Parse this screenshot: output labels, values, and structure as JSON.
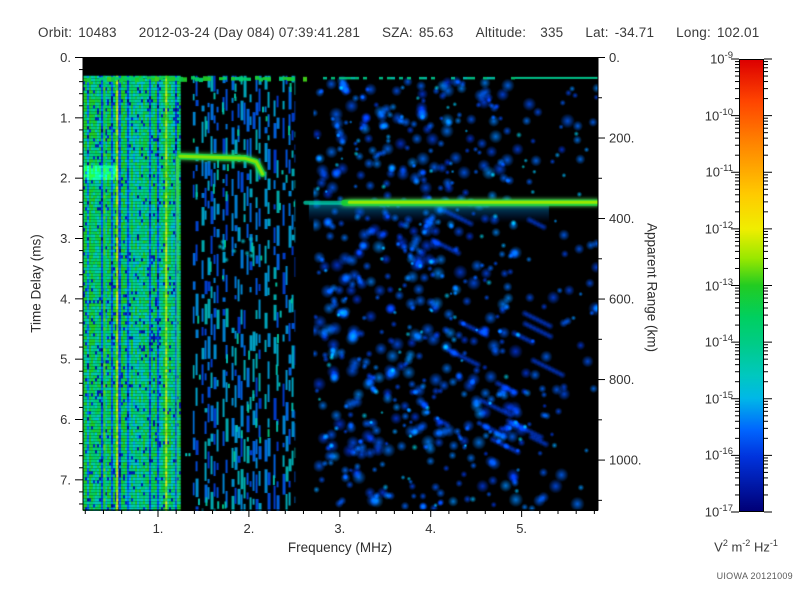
{
  "header": {
    "items": [
      {
        "label": "Orbit:",
        "value": "10483"
      },
      {
        "label": "",
        "value": "2012-03-24 (Day 084) 07:39:41.281"
      },
      {
        "label": "SZA:",
        "value": "85.63"
      },
      {
        "label": "Altitude:",
        "value": "335"
      },
      {
        "label": "Lat:",
        "value": "-34.71"
      },
      {
        "label": "Long:",
        "value": "102.01"
      }
    ]
  },
  "credit": "UIOWA 20121009",
  "chart_data": {
    "type": "heatmap",
    "description": "MARSIS-style AIS radar ionogram spectrogram: received spectral density vs frequency and time delay",
    "xlabel": "Frequency (MHz)",
    "ylabel_left": "Time Delay (ms)",
    "ylabel_right": "Apparent Range (km)",
    "x_range": [
      0.175,
      5.84
    ],
    "x_major_ticks": [
      1,
      2,
      3,
      4,
      5
    ],
    "x_major_labels": [
      "1.",
      "2.",
      "3.",
      "4.",
      "5."
    ],
    "x_minor_step": 0.2,
    "y_range_ms": [
      0,
      7.5
    ],
    "y_major_ticks_ms": [
      0,
      1,
      2,
      3,
      4,
      5,
      6,
      7
    ],
    "y_major_labels": [
      "0.",
      "1.",
      "2.",
      "3.",
      "4.",
      "5.",
      "6.",
      "7."
    ],
    "y_minor_step_ms": 0.2,
    "right_range_km": [
      0,
      1124
    ],
    "right_major_ticks_km": [
      0,
      200,
      400,
      600,
      800,
      1000
    ],
    "right_major_labels": [
      "0.",
      "200.",
      "400.",
      "600.",
      "800.",
      "1000."
    ],
    "right_minor_step_km": 100,
    "grid": false,
    "colorbar": {
      "scale": "log",
      "exponents": [
        -9,
        -10,
        -11,
        -12,
        -13,
        -14,
        -15,
        -16,
        -17
      ],
      "units_parts": [
        {
          "base": "V",
          "sup": "2"
        },
        {
          "base": "m",
          "sup": "-2"
        },
        {
          "base": "Hz",
          "sup": "-1"
        }
      ],
      "stops": [
        [
          0.0,
          "#dd0000"
        ],
        [
          0.09,
          "#ff4400"
        ],
        [
          0.19,
          "#ff8800"
        ],
        [
          0.3,
          "#ffcc00"
        ],
        [
          0.375,
          "#f0ee00"
        ],
        [
          0.44,
          "#99e800"
        ],
        [
          0.5,
          "#22cc22"
        ],
        [
          0.57,
          "#00d060"
        ],
        [
          0.63,
          "#00cc88"
        ],
        [
          0.7,
          "#00c8c0"
        ],
        [
          0.75,
          "#00b8e8"
        ],
        [
          0.82,
          "#0066ff"
        ],
        [
          0.88,
          "#0033dd"
        ],
        [
          1.0,
          "#000077"
        ]
      ]
    },
    "features": {
      "seed": 1337,
      "top_black_band_ms": [
        0,
        0.29
      ],
      "top_noise_line_ms": 0.33,
      "left_noise_mhz": [
        0.175,
        1.24
      ],
      "yellow_lines_mhz": [
        0.4,
        0.54,
        1.08
      ],
      "gap1_mhz": [
        1.25,
        1.38
      ],
      "mid_noise_mhz": [
        1.38,
        2.51
      ],
      "gap2_mhz": [
        2.51,
        2.71
      ],
      "blob_region_mhz": [
        2.71,
        5.84
      ],
      "cusp_line": {
        "mhz": 1.21,
        "ms_range": [
          1.63,
          7.4
        ]
      },
      "left_green_band": {
        "mhz_range": [
          0.175,
          0.55
        ],
        "ms_range": [
          1.78,
          2.02
        ]
      },
      "ionosphere_trace": {
        "points_mhz_ms": [
          [
            1.24,
            1.63
          ],
          [
            1.95,
            1.66
          ],
          [
            2.08,
            1.72
          ],
          [
            2.15,
            1.92
          ]
        ]
      },
      "echo_arc_dots": {
        "mhz_range": [
          1.68,
          2.05
        ],
        "ms_range": [
          3.0,
          3.4
        ]
      },
      "surface_echo": {
        "ms": 2.4,
        "bright_mhz": [
          3.05,
          5.84
        ],
        "faint_mhz": [
          2.62,
          3.05
        ],
        "fuzz_mhz": [
          2.66,
          5.3
        ]
      },
      "right_edge_line_mhz": [
        4.9,
        5.84
      ]
    }
  }
}
